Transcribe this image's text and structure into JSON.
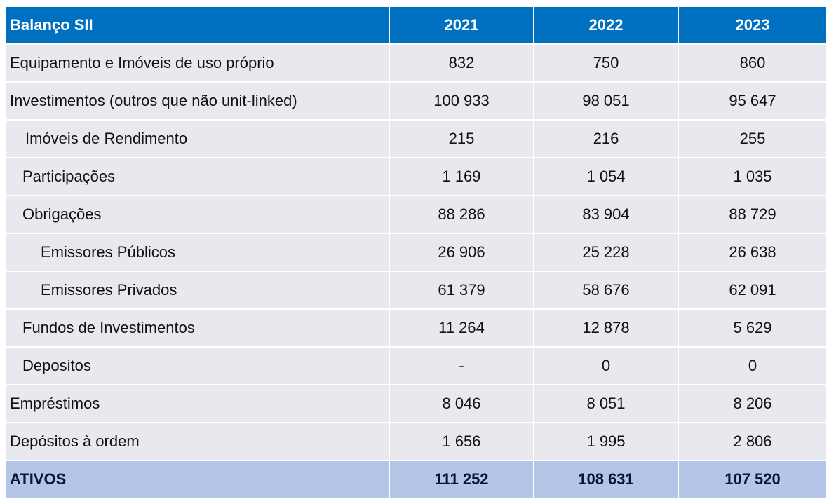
{
  "table": {
    "header": [
      "Balanço SII",
      "2021",
      "2022",
      "2023"
    ],
    "rows": [
      [
        "Equipamento e Imóveis de uso próprio",
        "832",
        "750",
        "860"
      ],
      [
        "Investimentos (outros que não unit-linked)",
        "100 933",
        "98 051",
        "95 647"
      ],
      [
        "Imóveis de Rendimento",
        "215",
        "216",
        "255"
      ],
      [
        "Participações",
        "1 169",
        "1 054",
        "1 035"
      ],
      [
        "Obrigações",
        "88 286",
        "83 904",
        "88 729"
      ],
      [
        "Emissores Públicos",
        "26 906",
        "25 228",
        "26 638"
      ],
      [
        "Emissores Privados",
        "61 379",
        "58 676",
        "62 091"
      ],
      [
        "Fundos de Investimentos",
        "11 264",
        "12 878",
        "5 629"
      ],
      [
        "Depositos",
        "-",
        "0",
        "0"
      ],
      [
        "Empréstimos",
        "8 046",
        "8 051",
        "8 206"
      ],
      [
        "Depósitos à ordem",
        "1 656",
        "1 995",
        "2 806"
      ]
    ],
    "total": [
      "ATIVOS",
      "111 252",
      "108 631",
      "107 520"
    ]
  }
}
